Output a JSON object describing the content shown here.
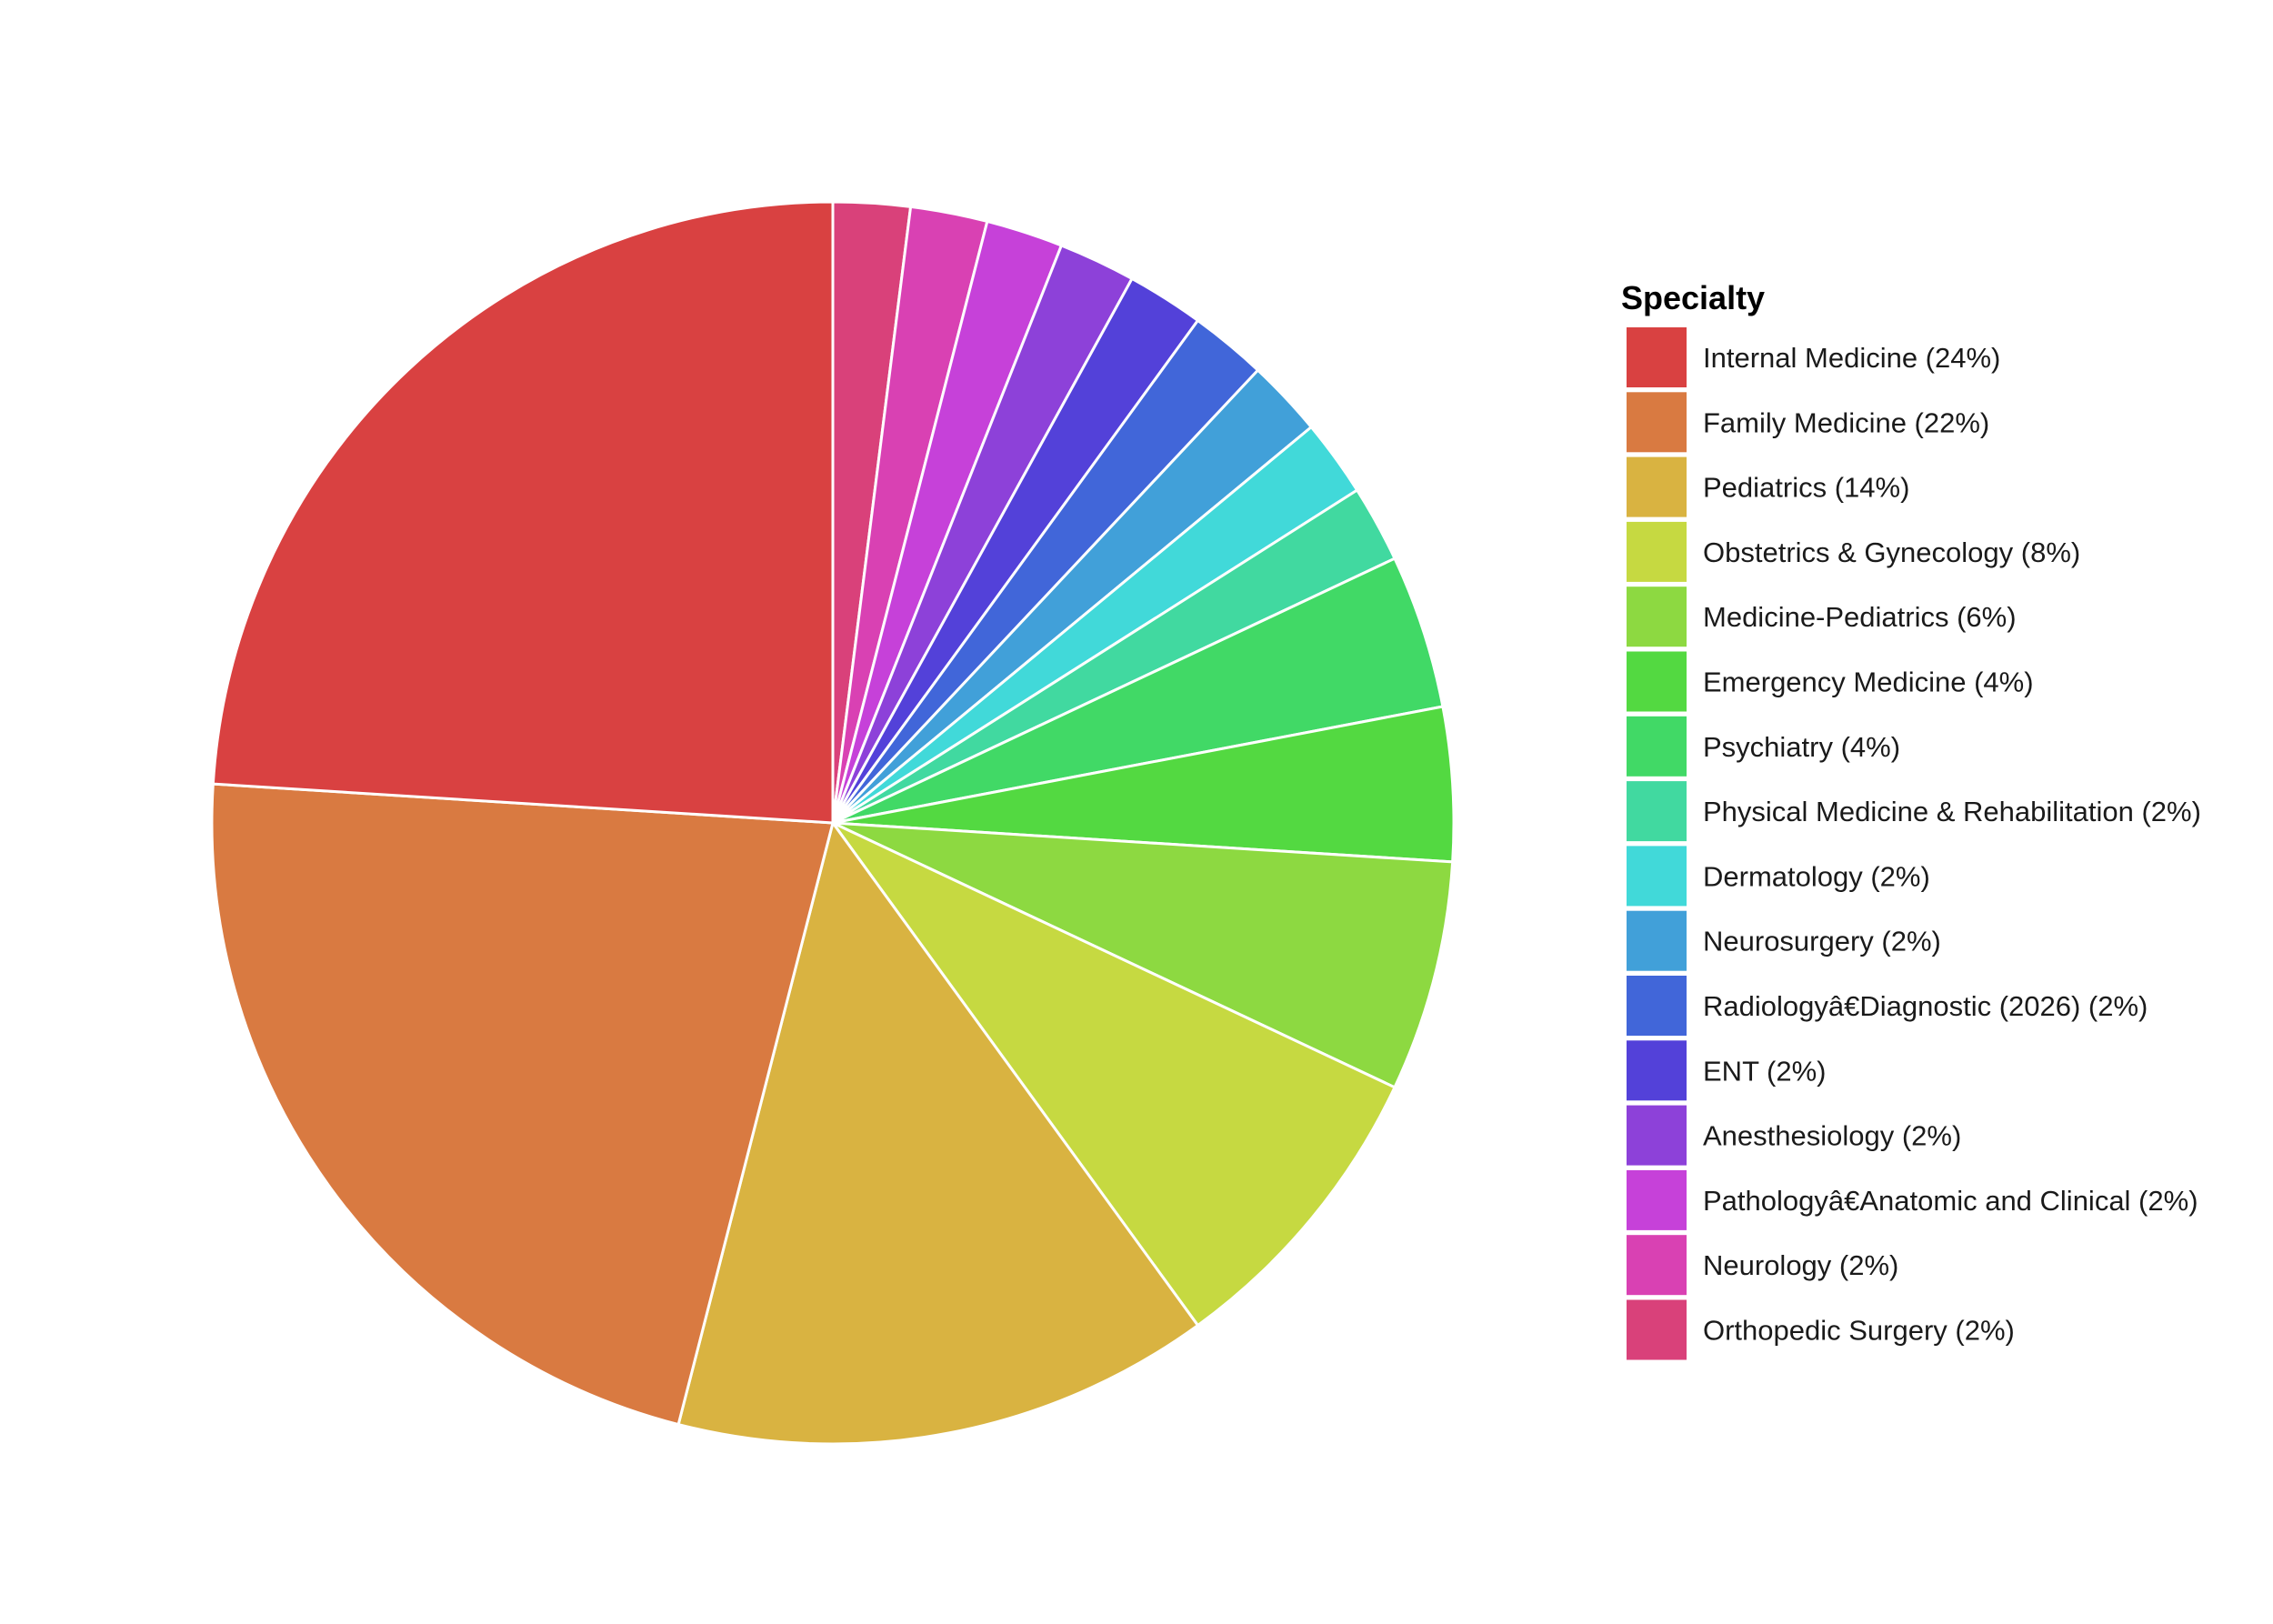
{
  "chart_data": {
    "type": "pie",
    "legend_title": "Specialty",
    "legend_position": "right",
    "slices": [
      {
        "label": "Internal Medicine (24%)",
        "value": 24,
        "color": "#d94141"
      },
      {
        "label": "Family Medicine (22%)",
        "value": 22,
        "color": "#d97a41"
      },
      {
        "label": "Pediatrics (14%)",
        "value": 14,
        "color": "#d9b341"
      },
      {
        "label": "Obstetrics & Gynecology (8%)",
        "value": 8,
        "color": "#c6d941"
      },
      {
        "label": "Medicine-Pediatrics (6%)",
        "value": 6,
        "color": "#8dd941"
      },
      {
        "label": "Emergency Medicine (4%)",
        "value": 4,
        "color": "#53d941"
      },
      {
        "label": "Psychiatry (4%)",
        "value": 4,
        "color": "#41d966"
      },
      {
        "label": "Physical Medicine & Rehabilitation (2%)",
        "value": 2,
        "color": "#41d9a0"
      },
      {
        "label": "Dermatology (2%)",
        "value": 2,
        "color": "#41d9d9"
      },
      {
        "label": "Neurosurgery (2%)",
        "value": 2,
        "color": "#41a0d9"
      },
      {
        "label": "Radiologyâ€Diagnostic (2026) (2%)",
        "value": 2,
        "color": "#4166d9"
      },
      {
        "label": "ENT (2%)",
        "value": 2,
        "color": "#5341d9"
      },
      {
        "label": "Anesthesiology (2%)",
        "value": 2,
        "color": "#8d41d9"
      },
      {
        "label": "Pathologyâ€Anatomic and Clinical (2%)",
        "value": 2,
        "color": "#c641d9"
      },
      {
        "label": "Neurology (2%)",
        "value": 2,
        "color": "#d941b3"
      },
      {
        "label": "Orthopedic Surgery (2%)",
        "value": 2,
        "color": "#d9417a"
      }
    ]
  }
}
